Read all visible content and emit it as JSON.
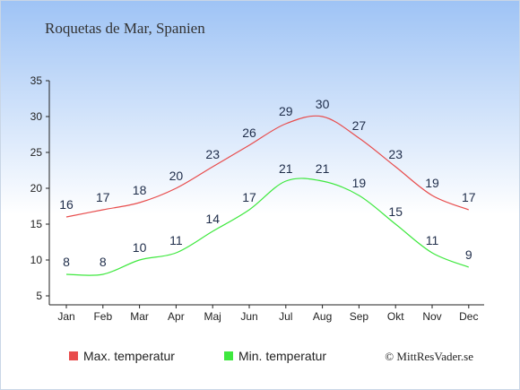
{
  "title": "Roquetas de Mar, Spanien",
  "credit": "© MittResVader.se",
  "colors": {
    "max": "#e84c4c",
    "min": "#3ee83e",
    "background_top": "#9ec3f5",
    "background_bottom": "#ffffff",
    "axis": "#222222",
    "label": "#1f2d4a"
  },
  "chart_data": {
    "type": "line",
    "categories": [
      "Jan",
      "Feb",
      "Mar",
      "Apr",
      "Maj",
      "Jun",
      "Jul",
      "Aug",
      "Sep",
      "Okt",
      "Nov",
      "Dec"
    ],
    "series": [
      {
        "name": "Max. temperatur",
        "values": [
          16,
          17,
          18,
          20,
          23,
          26,
          29,
          30,
          27,
          23,
          19,
          17
        ]
      },
      {
        "name": "Min. temperatur",
        "values": [
          8,
          8,
          10,
          11,
          14,
          17,
          21,
          21,
          19,
          15,
          11,
          9
        ]
      }
    ],
    "yticks": [
      5,
      10,
      15,
      20,
      25,
      30,
      35
    ],
    "ylim": [
      5,
      35
    ],
    "grid": false,
    "legend_position": "bottom-left"
  }
}
